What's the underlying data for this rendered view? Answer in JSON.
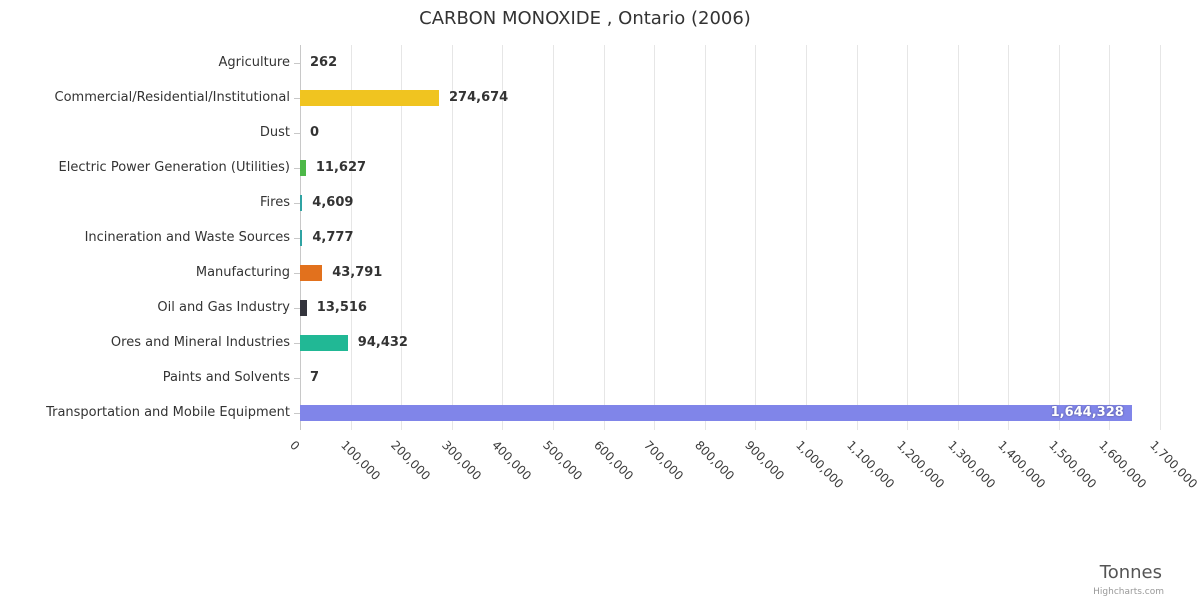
{
  "chart_data": {
    "type": "bar",
    "title": "CARBON MONOXIDE , Ontario (2006)",
    "xlabel": "Tonnes",
    "categories": [
      "Agriculture",
      "Commercial/Residential/Institutional",
      "Dust",
      "Electric Power Generation (Utilities)",
      "Fires",
      "Incineration and Waste Sources",
      "Manufacturing",
      "Oil and Gas Industry",
      "Ores and Mineral Industries",
      "Paints and Solvents",
      "Transportation and Mobile Equipment"
    ],
    "values": [
      262,
      274674,
      0,
      11627,
      4609,
      4777,
      43791,
      13516,
      94432,
      7,
      1644328
    ],
    "value_labels": [
      "262",
      "274,674",
      "0",
      "11,627",
      "4,609",
      "4,777",
      "43,791",
      "13,516",
      "94,432",
      "7",
      "1,644,328"
    ],
    "colors": [
      null,
      "#f0c420",
      null,
      "#4db848",
      "#2fa3a3",
      "#2fa3a3",
      "#e2711d",
      "#33343c",
      "#21b895",
      null,
      "#8085e9"
    ],
    "axis": {
      "min": 0,
      "max": 1700000,
      "tick_step": 100000,
      "tick_labels": [
        "0",
        "100,000",
        "200,000",
        "300,000",
        "400,000",
        "500,000",
        "600,000",
        "700,000",
        "800,000",
        "900,000",
        "1,000,000",
        "1,100,000",
        "1,200,000",
        "1,300,000",
        "1,400,000",
        "1,500,000",
        "1,600,000",
        "1,700,000"
      ]
    },
    "grid": true,
    "legend": "none"
  },
  "credits_label": "Highcharts.com"
}
